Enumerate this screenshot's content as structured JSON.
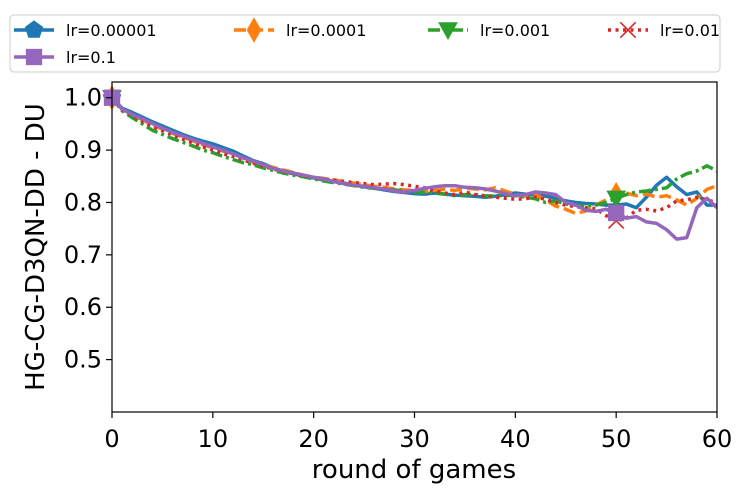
{
  "chart_data": {
    "type": "line",
    "xlabel": "round of games",
    "ylabel": "HG-CG-D3QN-DD - DU",
    "xlim": [
      0,
      60
    ],
    "ylim": [
      0.4,
      1.03
    ],
    "xticks": [
      0,
      10,
      20,
      30,
      40,
      50,
      60
    ],
    "yticks": [
      0.5,
      0.6,
      0.7,
      0.8,
      0.9,
      1.0
    ],
    "grid": false,
    "legend_position": "top",
    "series": [
      {
        "name": "lr=0.00001",
        "color": "#1f77b4",
        "dash": "solid",
        "marker": "pentagon",
        "marker_x": [
          0
        ],
        "x": [
          0,
          1,
          2,
          3,
          4,
          5,
          6,
          7,
          8,
          9,
          10,
          11,
          12,
          13,
          14,
          15,
          16,
          17,
          18,
          19,
          20,
          21,
          22,
          23,
          24,
          25,
          26,
          27,
          28,
          29,
          30,
          31,
          32,
          33,
          34,
          35,
          36,
          37,
          38,
          39,
          40,
          41,
          42,
          43,
          44,
          45,
          46,
          47,
          48,
          49,
          50,
          51,
          52,
          53,
          54,
          55,
          56,
          57,
          58,
          59,
          60
        ],
        "values": [
          1.0,
          0.98,
          0.972,
          0.963,
          0.954,
          0.946,
          0.938,
          0.93,
          0.923,
          0.917,
          0.912,
          0.905,
          0.898,
          0.889,
          0.88,
          0.874,
          0.866,
          0.86,
          0.855,
          0.85,
          0.847,
          0.843,
          0.84,
          0.837,
          0.833,
          0.83,
          0.827,
          0.824,
          0.821,
          0.819,
          0.817,
          0.816,
          0.818,
          0.816,
          0.814,
          0.813,
          0.812,
          0.81,
          0.812,
          0.815,
          0.818,
          0.816,
          0.815,
          0.812,
          0.808,
          0.803,
          0.8,
          0.798,
          0.797,
          0.795,
          0.795,
          0.797,
          0.79,
          0.81,
          0.833,
          0.848,
          0.83,
          0.815,
          0.82,
          0.795,
          0.795
        ]
      },
      {
        "name": "lr=0.0001",
        "color": "#ff7f0e",
        "dash": "dashed",
        "marker": "thin_diamond",
        "marker_x": [
          0,
          50
        ],
        "x": [
          0,
          1,
          2,
          3,
          4,
          5,
          6,
          7,
          8,
          9,
          10,
          11,
          12,
          13,
          14,
          15,
          16,
          17,
          18,
          19,
          20,
          21,
          22,
          23,
          24,
          25,
          26,
          27,
          28,
          29,
          30,
          31,
          32,
          33,
          34,
          35,
          36,
          37,
          38,
          39,
          40,
          41,
          42,
          43,
          44,
          45,
          46,
          47,
          48,
          49,
          50,
          51,
          52,
          53,
          54,
          55,
          56,
          57,
          58,
          59,
          60
        ],
        "values": [
          1.0,
          0.978,
          0.968,
          0.958,
          0.948,
          0.94,
          0.932,
          0.925,
          0.918,
          0.91,
          0.905,
          0.898,
          0.893,
          0.885,
          0.877,
          0.872,
          0.867,
          0.862,
          0.857,
          0.852,
          0.848,
          0.846,
          0.843,
          0.84,
          0.837,
          0.834,
          0.831,
          0.829,
          0.826,
          0.824,
          0.823,
          0.821,
          0.823,
          0.825,
          0.823,
          0.827,
          0.826,
          0.824,
          0.828,
          0.822,
          0.815,
          0.812,
          0.815,
          0.805,
          0.793,
          0.787,
          0.779,
          0.784,
          0.795,
          0.805,
          0.815,
          0.818,
          0.813,
          0.816,
          0.81,
          0.813,
          0.805,
          0.795,
          0.808,
          0.825,
          0.832
        ]
      },
      {
        "name": "lr=0.001",
        "color": "#2ca02c",
        "dash": "dashdot",
        "marker": "triangle_down",
        "marker_x": [
          0,
          50
        ],
        "x": [
          0,
          1,
          2,
          3,
          4,
          5,
          6,
          7,
          8,
          9,
          10,
          11,
          12,
          13,
          14,
          15,
          16,
          17,
          18,
          19,
          20,
          21,
          22,
          23,
          24,
          25,
          26,
          27,
          28,
          29,
          30,
          31,
          32,
          33,
          34,
          35,
          36,
          37,
          38,
          39,
          40,
          41,
          42,
          43,
          44,
          45,
          46,
          47,
          48,
          49,
          50,
          51,
          52,
          53,
          54,
          55,
          56,
          57,
          58,
          59,
          60
        ],
        "values": [
          1.0,
          0.975,
          0.962,
          0.95,
          0.938,
          0.93,
          0.922,
          0.915,
          0.908,
          0.9,
          0.895,
          0.888,
          0.882,
          0.876,
          0.872,
          0.866,
          0.861,
          0.856,
          0.852,
          0.849,
          0.845,
          0.841,
          0.838,
          0.835,
          0.832,
          0.829,
          0.827,
          0.826,
          0.824,
          0.822,
          0.82,
          0.819,
          0.818,
          0.816,
          0.813,
          0.815,
          0.815,
          0.813,
          0.812,
          0.814,
          0.813,
          0.81,
          0.807,
          0.8,
          0.803,
          0.797,
          0.795,
          0.793,
          0.795,
          0.8,
          0.808,
          0.815,
          0.82,
          0.822,
          0.825,
          0.828,
          0.845,
          0.855,
          0.86,
          0.87,
          0.86
        ]
      },
      {
        "name": "lr=0.01",
        "color": "#d62728",
        "dash": "dotted",
        "marker": "x",
        "marker_x": [
          0,
          50
        ],
        "x": [
          0,
          1,
          2,
          3,
          4,
          5,
          6,
          7,
          8,
          9,
          10,
          11,
          12,
          13,
          14,
          15,
          16,
          17,
          18,
          19,
          20,
          21,
          22,
          23,
          24,
          25,
          26,
          27,
          28,
          29,
          30,
          31,
          32,
          33,
          34,
          35,
          36,
          37,
          38,
          39,
          40,
          41,
          42,
          43,
          44,
          45,
          46,
          47,
          48,
          49,
          50,
          51,
          52,
          53,
          54,
          55,
          56,
          57,
          58,
          59,
          60
        ],
        "values": [
          1.0,
          0.977,
          0.966,
          0.955,
          0.945,
          0.937,
          0.929,
          0.921,
          0.914,
          0.906,
          0.9,
          0.893,
          0.888,
          0.881,
          0.875,
          0.869,
          0.864,
          0.859,
          0.855,
          0.851,
          0.848,
          0.845,
          0.843,
          0.84,
          0.838,
          0.836,
          0.834,
          0.835,
          0.836,
          0.834,
          0.831,
          0.828,
          0.822,
          0.818,
          0.815,
          0.82,
          0.815,
          0.812,
          0.81,
          0.808,
          0.806,
          0.807,
          0.81,
          0.806,
          0.8,
          0.795,
          0.792,
          0.79,
          0.788,
          0.775,
          0.765,
          0.77,
          0.785,
          0.787,
          0.784,
          0.79,
          0.803,
          0.805,
          0.81,
          0.805,
          0.8
        ]
      },
      {
        "name": "lr=0.1",
        "color": "#9467bd",
        "dash": "solid",
        "marker": "square",
        "marker_x": [
          0,
          50
        ],
        "x": [
          0,
          1,
          2,
          3,
          4,
          5,
          6,
          7,
          8,
          9,
          10,
          11,
          12,
          13,
          14,
          15,
          16,
          17,
          18,
          19,
          20,
          21,
          22,
          23,
          24,
          25,
          26,
          27,
          28,
          29,
          30,
          31,
          32,
          33,
          34,
          35,
          36,
          37,
          38,
          39,
          40,
          41,
          42,
          43,
          44,
          45,
          46,
          47,
          48,
          49,
          50,
          51,
          52,
          53,
          54,
          55,
          56,
          57,
          58,
          59,
          60
        ],
        "values": [
          1.0,
          0.978,
          0.968,
          0.96,
          0.951,
          0.942,
          0.934,
          0.927,
          0.92,
          0.913,
          0.906,
          0.9,
          0.893,
          0.885,
          0.879,
          0.872,
          0.865,
          0.86,
          0.856,
          0.852,
          0.848,
          0.845,
          0.84,
          0.836,
          0.833,
          0.831,
          0.828,
          0.826,
          0.822,
          0.82,
          0.823,
          0.827,
          0.83,
          0.832,
          0.832,
          0.829,
          0.828,
          0.826,
          0.822,
          0.817,
          0.813,
          0.815,
          0.82,
          0.818,
          0.815,
          0.8,
          0.795,
          0.785,
          0.783,
          0.787,
          0.78,
          0.77,
          0.773,
          0.763,
          0.76,
          0.748,
          0.73,
          0.733,
          0.79,
          0.808,
          0.79
        ]
      }
    ]
  }
}
